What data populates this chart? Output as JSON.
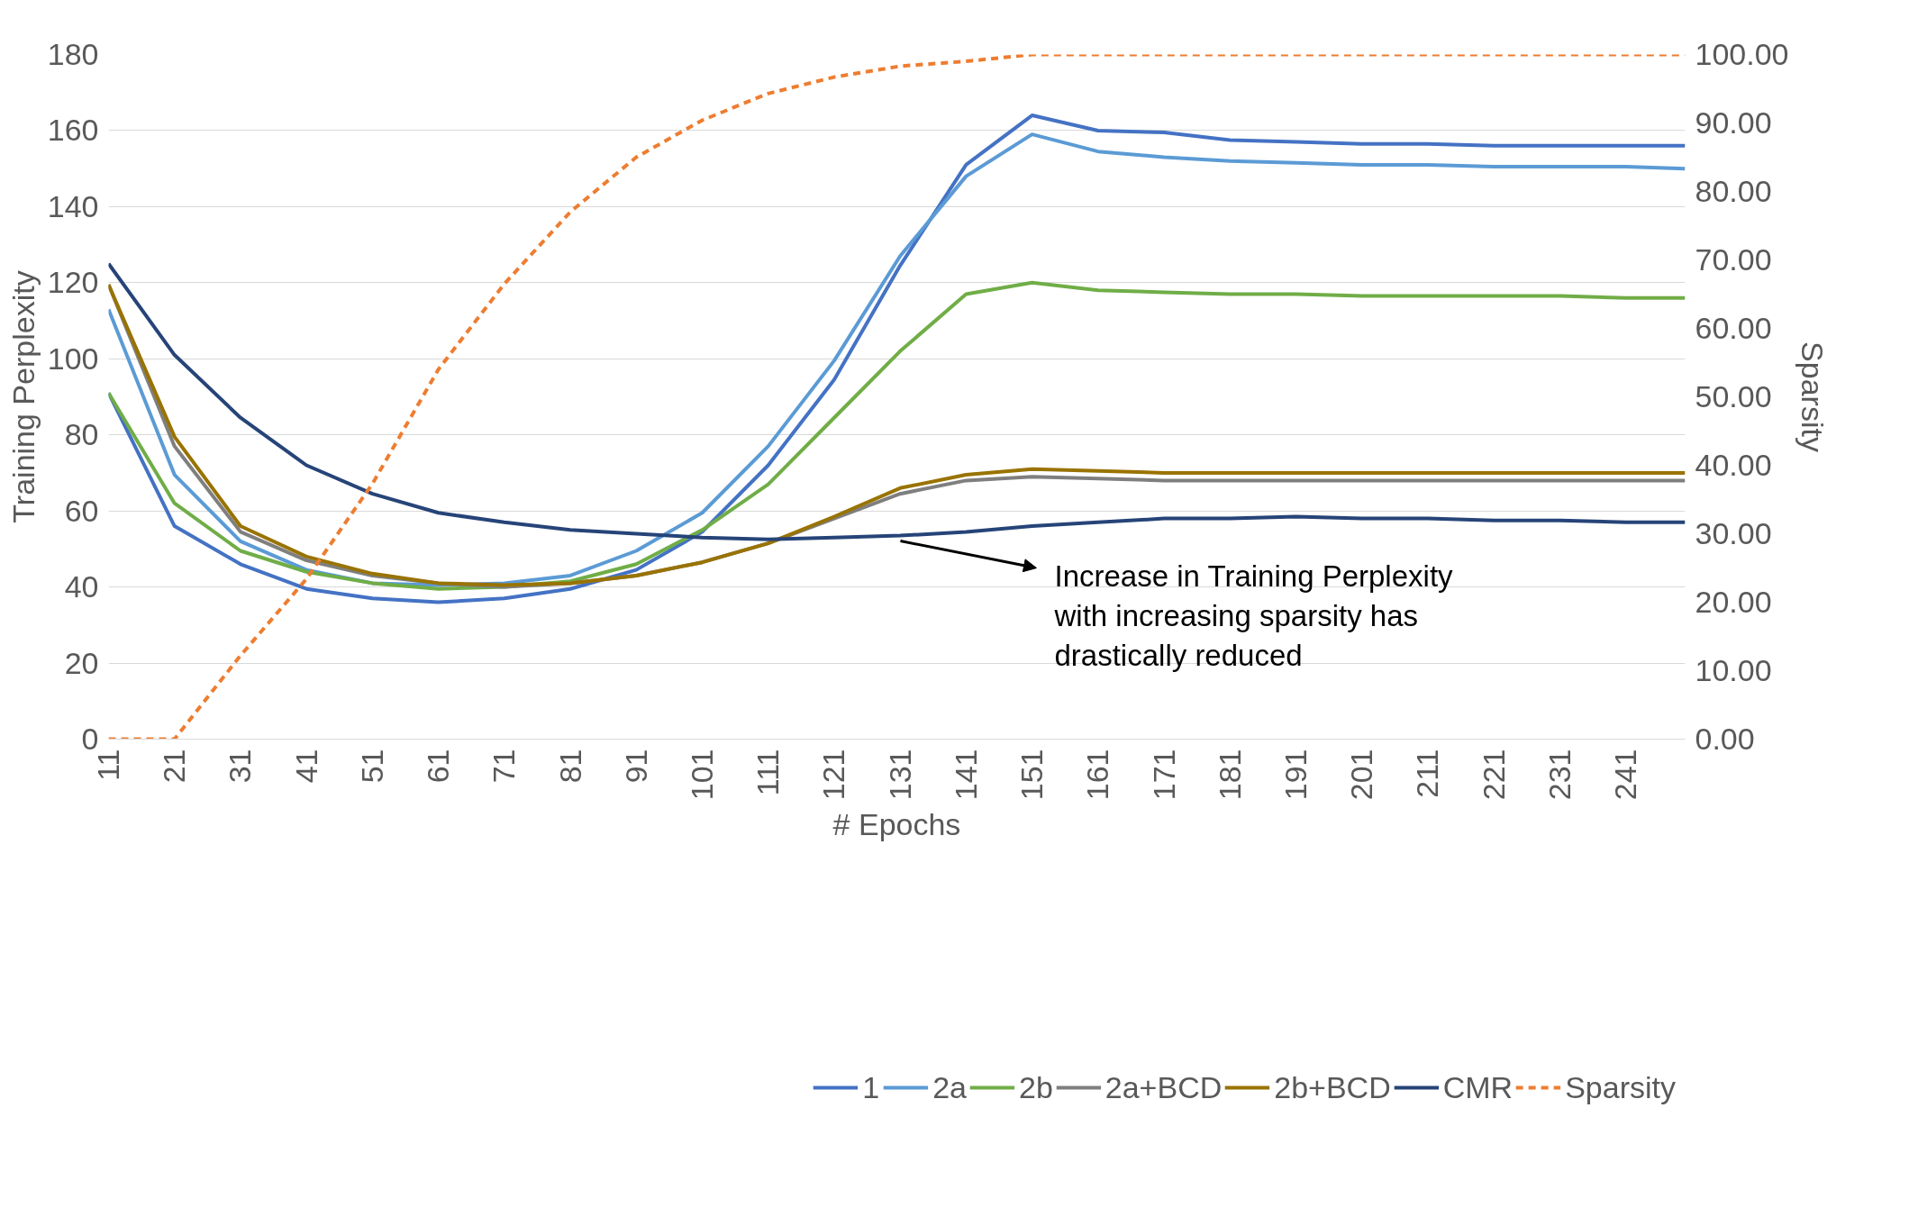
{
  "chart_data": {
    "type": "line",
    "xlabel": "# Epochs",
    "ylabel": "Training Perplexity",
    "y2label": "Sparsity",
    "x": [
      11,
      21,
      31,
      41,
      51,
      61,
      71,
      81,
      91,
      101,
      111,
      121,
      131,
      141,
      151,
      161,
      171,
      181,
      191,
      201,
      211,
      221,
      231,
      241,
      250
    ],
    "xlim": [
      11,
      250
    ],
    "xticks": [
      11,
      21,
      31,
      41,
      51,
      61,
      71,
      81,
      91,
      101,
      111,
      121,
      131,
      141,
      151,
      161,
      171,
      181,
      191,
      201,
      211,
      221,
      231,
      241
    ],
    "ylim": [
      0,
      180
    ],
    "yticks": [
      0,
      20,
      40,
      60,
      80,
      100,
      120,
      140,
      160,
      180
    ],
    "y2lim": [
      0,
      100
    ],
    "y2ticks": [
      {
        "value": 0,
        "label": "0.00"
      },
      {
        "value": 10,
        "label": "10.00"
      },
      {
        "value": 20,
        "label": "20.00"
      },
      {
        "value": 30,
        "label": "30.00"
      },
      {
        "value": 40,
        "label": "40.00"
      },
      {
        "value": 50,
        "label": "50.00"
      },
      {
        "value": 60,
        "label": "60.00"
      },
      {
        "value": 70,
        "label": "70.00"
      },
      {
        "value": 80,
        "label": "80.00"
      },
      {
        "value": 90,
        "label": "90.00"
      },
      {
        "value": 100,
        "label": "100.00"
      }
    ],
    "grid": "y",
    "legend": "bottom",
    "line_style": "solid",
    "series": [
      {
        "name": "1",
        "color": "#4472c4",
        "values": [
          91,
          56,
          46,
          39.5,
          37,
          36,
          37,
          39.5,
          44.5,
          54.5,
          72,
          94.5,
          124.5,
          151,
          164,
          160,
          159.5,
          157.5,
          157,
          156.5,
          156.5,
          156,
          156,
          156,
          156
        ]
      },
      {
        "name": "2a",
        "color": "#5b9bd5",
        "values": [
          113,
          69.5,
          52,
          44.5,
          41,
          40.5,
          41,
          43,
          49.5,
          59.5,
          77,
          99.5,
          127,
          148,
          159,
          154.5,
          153,
          152,
          151.5,
          151,
          151,
          150.5,
          150.5,
          150.5,
          150
        ]
      },
      {
        "name": "2b",
        "color": "#70ad47",
        "values": [
          91,
          62,
          49.5,
          44,
          41,
          39.5,
          40,
          41.5,
          46,
          55,
          67,
          84.5,
          102,
          117,
          120,
          118,
          117.5,
          117,
          117,
          116.5,
          116.5,
          116.5,
          116.5,
          116,
          116
        ]
      },
      {
        "name": "2a+BCD",
        "color": "#7f7f7f",
        "values": [
          119.5,
          77,
          54.5,
          47,
          43,
          41,
          40,
          41,
          43,
          46.5,
          51.5,
          58,
          64.5,
          68,
          69,
          68.5,
          68,
          68,
          68,
          68,
          68,
          68,
          68,
          68,
          68
        ]
      },
      {
        "name": "2b+BCD",
        "color": "#997300",
        "values": [
          119.5,
          79.5,
          56,
          48,
          43.5,
          41,
          40.5,
          41,
          43,
          46.5,
          51.5,
          58.5,
          66,
          69.5,
          71,
          70.5,
          70,
          70,
          70,
          70,
          70,
          70,
          70,
          70,
          70
        ]
      },
      {
        "name": "CMR",
        "color": "#264478",
        "values": [
          125,
          101,
          84.5,
          72,
          64.5,
          59.5,
          57,
          55,
          54,
          53,
          52.5,
          53,
          53.5,
          54.5,
          56,
          57,
          58,
          58,
          58.5,
          58,
          58,
          57.5,
          57.5,
          57,
          57
        ]
      },
      {
        "name": "Sparsity",
        "color": "#ed7d31",
        "axis": "y2",
        "line_style": "dashed",
        "values": [
          0,
          0,
          12.2,
          23.4,
          37.3,
          54,
          66.5,
          77,
          85,
          90.4,
          94.3,
          96.7,
          98.3,
          99,
          100,
          100,
          100,
          100,
          100,
          100,
          100,
          100,
          100,
          100,
          100
        ]
      }
    ],
    "annotations": [
      "Increase in Training Perplexity with increasing sparsity has drastically reduced"
    ]
  }
}
